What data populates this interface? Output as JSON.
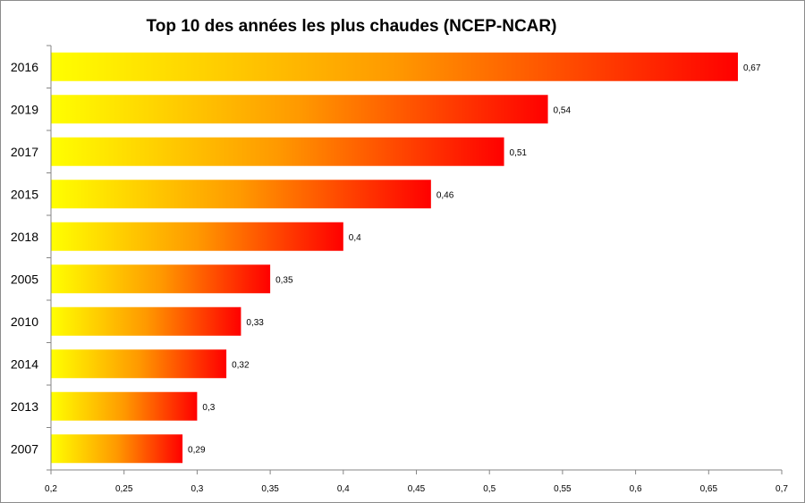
{
  "chart_data": {
    "type": "bar",
    "orientation": "horizontal",
    "title": "Top 10 des années les plus chaudes (NCEP-NCAR)",
    "categories": [
      "2016",
      "2019",
      "2017",
      "2015",
      "2018",
      "2005",
      "2010",
      "2014",
      "2013",
      "2007"
    ],
    "values": [
      0.67,
      0.54,
      0.51,
      0.46,
      0.4,
      0.35,
      0.33,
      0.32,
      0.3,
      0.29
    ],
    "data_labels": [
      "0,67",
      "0,54",
      "0,51",
      "0,46",
      "0,4",
      "0,35",
      "0,33",
      "0,32",
      "0,3",
      "0,29"
    ],
    "xlim": [
      0.2,
      0.7
    ],
    "x_ticks": [
      0.2,
      0.25,
      0.3,
      0.35,
      0.4,
      0.45,
      0.5,
      0.55,
      0.6,
      0.65,
      0.7
    ],
    "x_tick_labels": [
      "0,2",
      "0,25",
      "0,3",
      "0,35",
      "0,4",
      "0,45",
      "0,5",
      "0,55",
      "0,6",
      "0,65",
      "0,7"
    ],
    "xlabel": "",
    "ylabel": "",
    "grid": false,
    "legend": "none",
    "colors": {
      "gradient_start": "#ffff00",
      "gradient_mid": "#ff9900",
      "gradient_end": "#ff0000",
      "axis": "#868686"
    }
  }
}
